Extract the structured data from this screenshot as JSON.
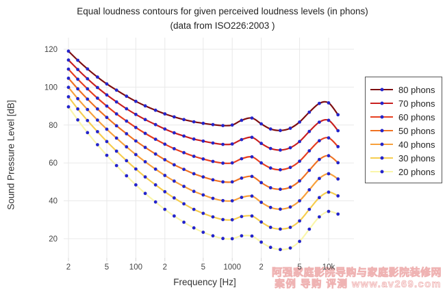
{
  "title": {
    "line1": "Equal loudness contours for given perceived loudness levels (in phons)",
    "line2": "(data from ISO226:2003 )"
  },
  "axes": {
    "x": {
      "label": "Frequency [Hz]",
      "scale": "log",
      "ticks": [
        {
          "value": 20,
          "label": "2"
        },
        {
          "value": 50,
          "label": "5"
        },
        {
          "value": 100,
          "label": "100"
        },
        {
          "value": 200,
          "label": "2"
        },
        {
          "value": 500,
          "label": "5"
        },
        {
          "value": 1000,
          "label": "1000"
        },
        {
          "value": 2000,
          "label": "2"
        },
        {
          "value": 5000,
          "label": "5"
        },
        {
          "value": 10000,
          "label": "10k"
        }
      ]
    },
    "y": {
      "label": "Sound Pressure Level [dB]",
      "ticks": [
        20,
        40,
        60,
        80,
        100,
        120
      ]
    }
  },
  "watermark": {
    "line1": "阿强家庭影院导购与家庭影院装修网",
    "line2": "案例 导购 评测  www.av269.com",
    "color": "#efb3b3"
  },
  "chart_data": {
    "type": "line",
    "title": "Equal loudness contours for given perceived loudness levels (in phons) (data from ISO226:2003 )",
    "xlabel": "Frequency [Hz]",
    "ylabel": "Sound Pressure Level [dB]",
    "xscale": "log",
    "xlim": [
      20,
      12500
    ],
    "ylim": [
      10,
      126
    ],
    "grid": true,
    "legend_position": "outside-right",
    "marker": {
      "shape": "dot",
      "color": "#2424cb",
      "size": 5
    },
    "x": [
      20,
      25,
      31.5,
      40,
      50,
      63,
      80,
      100,
      125,
      160,
      200,
      250,
      315,
      400,
      500,
      630,
      800,
      1000,
      1250,
      1600,
      2000,
      2500,
      3150,
      4000,
      5000,
      6300,
      8000,
      10000,
      12500
    ],
    "series": [
      {
        "name": "80 phons",
        "phons": 80,
        "line_color": "#7d0d10",
        "values": [
          119.0,
          114.2,
          109.6,
          105.3,
          101.7,
          98.4,
          95.2,
          92.5,
          90.1,
          87.8,
          85.9,
          84.3,
          82.9,
          81.7,
          80.9,
          80.2,
          79.7,
          80.0,
          82.5,
          83.7,
          80.6,
          77.9,
          77.1,
          78.3,
          81.6,
          86.8,
          91.4,
          91.7,
          85.4
        ]
      },
      {
        "name": "70 phons",
        "phons": 70,
        "line_color": "#c81f1f",
        "values": [
          114.3,
          109.3,
          104.4,
          99.8,
          95.9,
          92.2,
          88.6,
          85.6,
          82.9,
          80.2,
          77.9,
          75.9,
          74.2,
          72.6,
          71.5,
          70.5,
          69.8,
          70.0,
          72.3,
          73.5,
          70.3,
          67.6,
          66.8,
          68.0,
          71.3,
          76.6,
          81.5,
          82.5,
          77.0
        ]
      },
      {
        "name": "60 phons",
        "phons": 60,
        "line_color": "#e63e1f",
        "values": [
          109.5,
          104.2,
          99.1,
          94.2,
          90.0,
          85.9,
          82.1,
          78.7,
          75.6,
          72.5,
          69.9,
          67.5,
          65.4,
          63.5,
          62.1,
          60.8,
          59.9,
          60.0,
          62.2,
          63.2,
          60.0,
          57.3,
          56.4,
          57.6,
          60.9,
          66.4,
          71.7,
          73.2,
          68.6
        ]
      },
      {
        "name": "50 phons",
        "phons": 50,
        "line_color": "#ef7222",
        "values": [
          104.7,
          99.1,
          93.7,
          88.5,
          84.0,
          79.6,
          75.4,
          71.6,
          68.2,
          64.7,
          61.7,
          59.0,
          56.6,
          54.3,
          52.6,
          51.1,
          50.0,
          50.0,
          52.0,
          52.9,
          49.6,
          46.9,
          46.1,
          47.2,
          50.5,
          56.1,
          61.8,
          63.8,
          60.1
        ]
      },
      {
        "name": "40 phons",
        "phons": 40,
        "line_color": "#f7a03b",
        "values": [
          99.9,
          93.9,
          88.2,
          82.6,
          77.8,
          73.1,
          68.5,
          64.4,
          60.6,
          56.7,
          53.4,
          50.4,
          47.6,
          45.0,
          43.1,
          41.3,
          40.1,
          40.0,
          41.8,
          42.5,
          39.2,
          36.5,
          35.6,
          36.7,
          40.0,
          45.8,
          51.8,
          54.3,
          51.5
        ]
      },
      {
        "name": "30 phons",
        "phons": 30,
        "line_color": "#f6cd4e",
        "values": [
          94.9,
          88.5,
          82.4,
          76.5,
          71.3,
          66.2,
          61.2,
          56.8,
          52.6,
          48.4,
          44.8,
          41.5,
          38.4,
          35.5,
          33.4,
          31.5,
          30.1,
          30.0,
          31.7,
          32.0,
          28.8,
          26.0,
          25.1,
          26.0,
          29.4,
          35.5,
          41.7,
          44.6,
          42.6
        ]
      },
      {
        "name": "20 phons",
        "phons": 20,
        "line_color": "#faf6aa",
        "values": [
          89.6,
          82.7,
          76.0,
          69.6,
          64.0,
          58.6,
          53.2,
          48.4,
          43.9,
          39.4,
          35.5,
          32.0,
          28.7,
          25.7,
          23.4,
          21.5,
          20.1,
          20.0,
          21.5,
          21.4,
          18.2,
          15.4,
          14.3,
          15.1,
          18.6,
          25.0,
          31.5,
          34.4,
          33.0
        ]
      }
    ]
  }
}
